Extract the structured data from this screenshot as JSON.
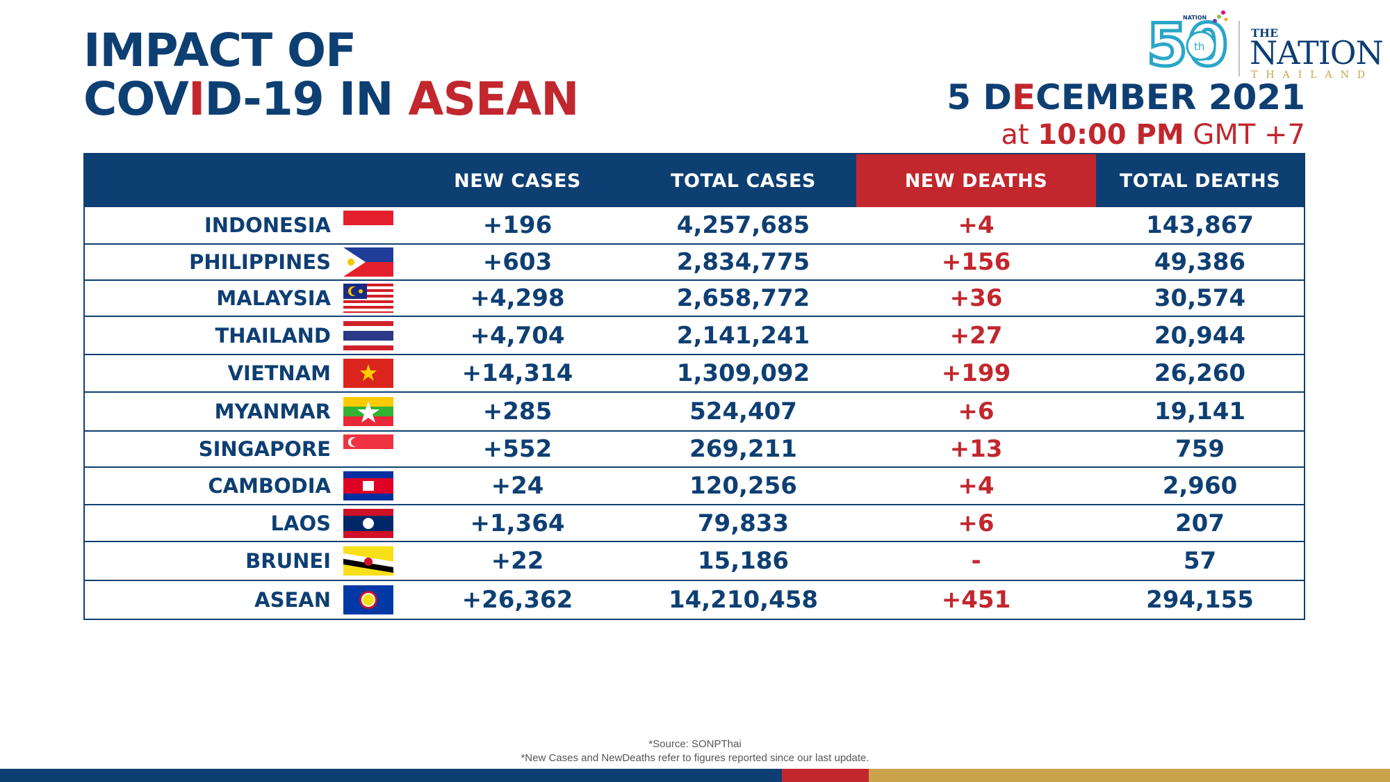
{
  "title": {
    "line1": "IMPACT OF",
    "line2_a": "COV",
    "line2_b": "I",
    "line2_c": "D-19 IN ",
    "line2_d": "ASEAN"
  },
  "logo": {
    "anniv": "50",
    "anniv_sup": "th",
    "mini": "NATION",
    "the": "THE",
    "nation": "NATION",
    "sub": "THAILAND"
  },
  "date": {
    "a": "5 D",
    "b": "E",
    "c": "CEMBER 2021"
  },
  "time": {
    "prefix": "at ",
    "bold": "10:00 PM",
    "suffix": " GMT +7"
  },
  "table": {
    "headers": [
      "",
      "NEW CASES",
      "TOTAL CASES",
      "NEW DEATHS",
      "TOTAL DEATHS"
    ],
    "rows": [
      {
        "country": "INDONESIA",
        "flag": "indonesia-flag",
        "new_cases": "+196",
        "total_cases": "4,257,685",
        "new_deaths": "+4",
        "total_deaths": "143,867"
      },
      {
        "country": "PHILIPPINES",
        "flag": "philippines-flag",
        "new_cases": "+603",
        "total_cases": "2,834,775",
        "new_deaths": "+156",
        "total_deaths": "49,386"
      },
      {
        "country": "MALAYSIA",
        "flag": "malaysia-flag",
        "new_cases": "+4,298",
        "total_cases": "2,658,772",
        "new_deaths": "+36",
        "total_deaths": "30,574"
      },
      {
        "country": "THAILAND",
        "flag": "thailand-flag",
        "new_cases": "+4,704",
        "total_cases": "2,141,241",
        "new_deaths": "+27",
        "total_deaths": "20,944"
      },
      {
        "country": "VIETNAM",
        "flag": "vietnam-flag",
        "new_cases": "+14,314",
        "total_cases": "1,309,092",
        "new_deaths": "+199",
        "total_deaths": "26,260"
      },
      {
        "country": "MYANMAR",
        "flag": "myanmar-flag",
        "new_cases": "+285",
        "total_cases": "524,407",
        "new_deaths": "+6",
        "total_deaths": "19,141"
      },
      {
        "country": "SINGAPORE",
        "flag": "singapore-flag",
        "new_cases": "+552",
        "total_cases": "269,211",
        "new_deaths": "+13",
        "total_deaths": "759"
      },
      {
        "country": "CAMBODIA",
        "flag": "cambodia-flag",
        "new_cases": "+24",
        "total_cases": "120,256",
        "new_deaths": "+4",
        "total_deaths": "2,960"
      },
      {
        "country": "LAOS",
        "flag": "laos-flag",
        "new_cases": "+1,364",
        "total_cases": "79,833",
        "new_deaths": "+6",
        "total_deaths": "207"
      },
      {
        "country": "BRUNEI",
        "flag": "brunei-flag",
        "new_cases": "+22",
        "total_cases": "15,186",
        "new_deaths": "-",
        "total_deaths": "57"
      },
      {
        "country": "ASEAN",
        "flag": "asean-flag",
        "new_cases": "+26,362",
        "total_cases": "14,210,458",
        "new_deaths": "+451",
        "total_deaths": "294,155"
      }
    ]
  },
  "footnotes": {
    "source": "*Source: SONPThai",
    "note": "*New Cases and NewDeaths refer to figures reported since our last update."
  },
  "colors": {
    "navy": "#0e3f73",
    "red": "#c1272d",
    "gold": "#c9a24a"
  }
}
